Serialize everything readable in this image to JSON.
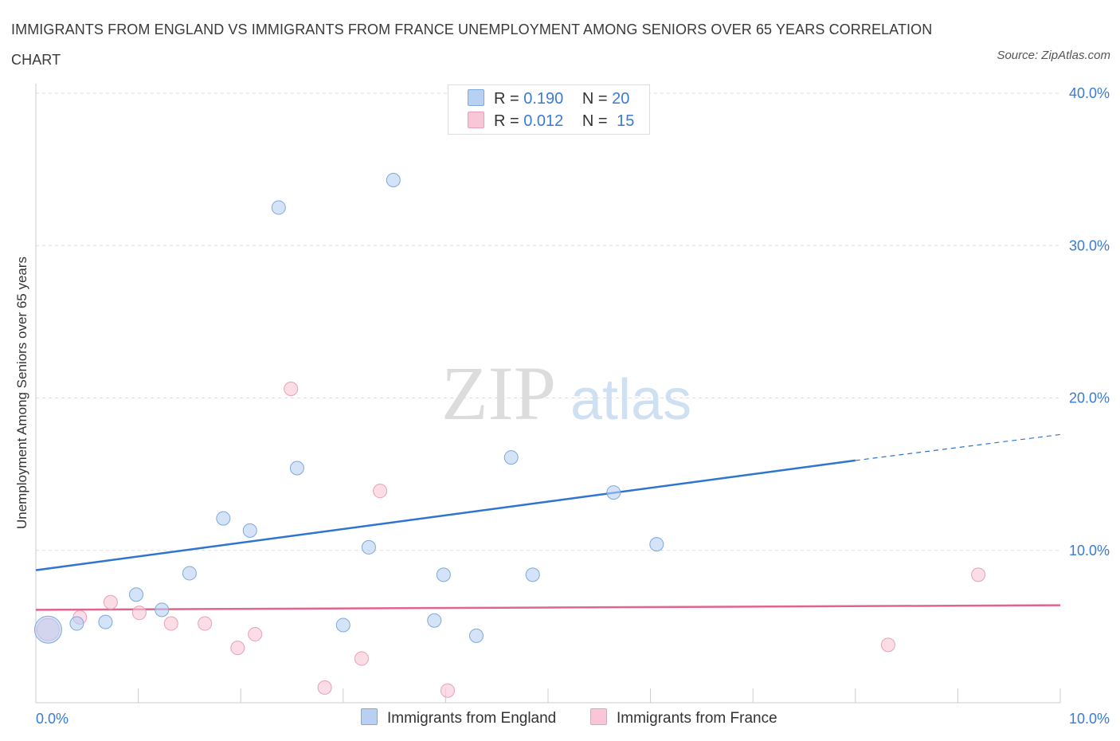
{
  "title": "IMMIGRANTS FROM ENGLAND VS IMMIGRANTS FROM FRANCE UNEMPLOYMENT AMONG SENIORS OVER 65 YEARS CORRELATION CHART",
  "source": "Source: ZipAtlas.com",
  "watermark": {
    "zip": "ZIP",
    "atlas": "atlas"
  },
  "legend": {
    "rows": [
      {
        "r_label": "R =",
        "r_value": "0.190",
        "n_label": "N =",
        "n_value": "20"
      },
      {
        "r_label": "R =",
        "r_value": "0.012",
        "n_label": "N =",
        "n_value": "15"
      }
    ]
  },
  "colors": {
    "england_fill": "#b8d1f2",
    "england_stroke": "#7fa8dc",
    "england_line": "#2f74d0",
    "france_fill": "#f8c6d6",
    "france_stroke": "#e8a0b8",
    "france_line": "#e0648c",
    "grid": "#dddddd",
    "axis_text": "#3a7bd5"
  },
  "chart_data": {
    "type": "scatter",
    "title": "IMMIGRANTS FROM ENGLAND VS IMMIGRANTS FROM FRANCE UNEMPLOYMENT AMONG SENIORS OVER 65 YEARS CORRELATION CHART",
    "xlabel": "",
    "ylabel": "Unemployment Among Seniors over 65 years",
    "xlim": [
      0,
      10
    ],
    "ylim": [
      0,
      40
    ],
    "x_tick_labels": [
      "0.0%",
      "10.0%"
    ],
    "y_ticks": [
      10,
      20,
      30,
      40
    ],
    "y_tick_labels": [
      "10.0%",
      "20.0%",
      "30.0%",
      "40.0%"
    ],
    "grid": true,
    "legend_position": "top-center",
    "series": [
      {
        "name": "Immigrants from England",
        "r": 0.19,
        "n": 20,
        "points": [
          {
            "x": 0.12,
            "y": 4.8,
            "size": "large"
          },
          {
            "x": 0.4,
            "y": 5.2
          },
          {
            "x": 0.68,
            "y": 5.3
          },
          {
            "x": 0.98,
            "y": 7.1
          },
          {
            "x": 1.23,
            "y": 6.1
          },
          {
            "x": 1.5,
            "y": 8.5
          },
          {
            "x": 1.83,
            "y": 12.1
          },
          {
            "x": 2.09,
            "y": 11.3
          },
          {
            "x": 2.37,
            "y": 32.5
          },
          {
            "x": 2.55,
            "y": 15.4
          },
          {
            "x": 3.0,
            "y": 5.1
          },
          {
            "x": 3.25,
            "y": 10.2
          },
          {
            "x": 3.49,
            "y": 34.3
          },
          {
            "x": 3.89,
            "y": 5.4
          },
          {
            "x": 3.98,
            "y": 8.4
          },
          {
            "x": 4.3,
            "y": 4.4
          },
          {
            "x": 4.64,
            "y": 16.1
          },
          {
            "x": 4.85,
            "y": 8.4
          },
          {
            "x": 5.64,
            "y": 13.8
          },
          {
            "x": 6.06,
            "y": 10.4
          }
        ],
        "trend": {
          "x0": 0,
          "y0": 8.7,
          "x1": 8.0,
          "y1": 15.9,
          "dashed_to_x": 10,
          "dashed_to_y": 17.6
        }
      },
      {
        "name": "Immigrants from France",
        "r": 0.012,
        "n": 15,
        "points": [
          {
            "x": 0.12,
            "y": 4.8,
            "size": "medium"
          },
          {
            "x": 0.43,
            "y": 5.6
          },
          {
            "x": 0.73,
            "y": 6.6
          },
          {
            "x": 1.01,
            "y": 5.9
          },
          {
            "x": 1.32,
            "y": 5.2
          },
          {
            "x": 1.65,
            "y": 5.2
          },
          {
            "x": 1.97,
            "y": 3.6
          },
          {
            "x": 2.14,
            "y": 4.5
          },
          {
            "x": 2.49,
            "y": 20.6
          },
          {
            "x": 2.82,
            "y": 1.0
          },
          {
            "x": 3.18,
            "y": 2.9
          },
          {
            "x": 3.36,
            "y": 13.9
          },
          {
            "x": 4.02,
            "y": 0.8
          },
          {
            "x": 8.32,
            "y": 3.8
          },
          {
            "x": 9.2,
            "y": 8.4
          }
        ],
        "trend": {
          "x0": 0,
          "y0": 6.1,
          "x1": 10,
          "y1": 6.4
        }
      }
    ]
  }
}
